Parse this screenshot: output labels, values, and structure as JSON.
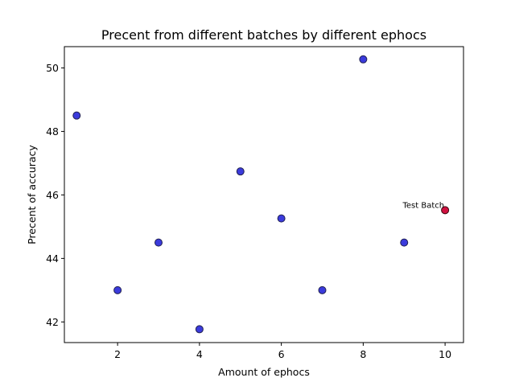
{
  "chart_data": {
    "type": "scatter",
    "title": "Precent from different batches by different ephocs",
    "xlabel": "Amount of ephocs",
    "ylabel": "Precent of accuracy",
    "xlim": [
      0.7,
      10.45
    ],
    "ylim": [
      41.35,
      50.67
    ],
    "xticks": [
      2,
      4,
      6,
      8,
      10
    ],
    "yticks": [
      42,
      44,
      46,
      48,
      50
    ],
    "xtick_labels": [
      "2",
      "4",
      "6",
      "8",
      "10"
    ],
    "ytick_labels": [
      "42",
      "44",
      "46",
      "48",
      "50"
    ],
    "grid": false,
    "series": [
      {
        "color": "#3b3bdc",
        "edge_color": "#202050",
        "points": [
          {
            "x": 1,
            "y": 48.5
          },
          {
            "x": 2,
            "y": 43.0
          },
          {
            "x": 3,
            "y": 44.5
          },
          {
            "x": 4,
            "y": 41.77
          },
          {
            "x": 5,
            "y": 46.74
          },
          {
            "x": 6,
            "y": 45.26
          },
          {
            "x": 7,
            "y": 43.0
          },
          {
            "x": 8,
            "y": 50.27
          },
          {
            "x": 9,
            "y": 44.5
          }
        ]
      },
      {
        "color": "#d01040",
        "edge_color": "#3a0a10",
        "points": [
          {
            "x": 10,
            "y": 45.52
          }
        ]
      }
    ],
    "annotations": [
      {
        "text": "Test Batch",
        "x": 10,
        "y": 45.52
      }
    ]
  }
}
